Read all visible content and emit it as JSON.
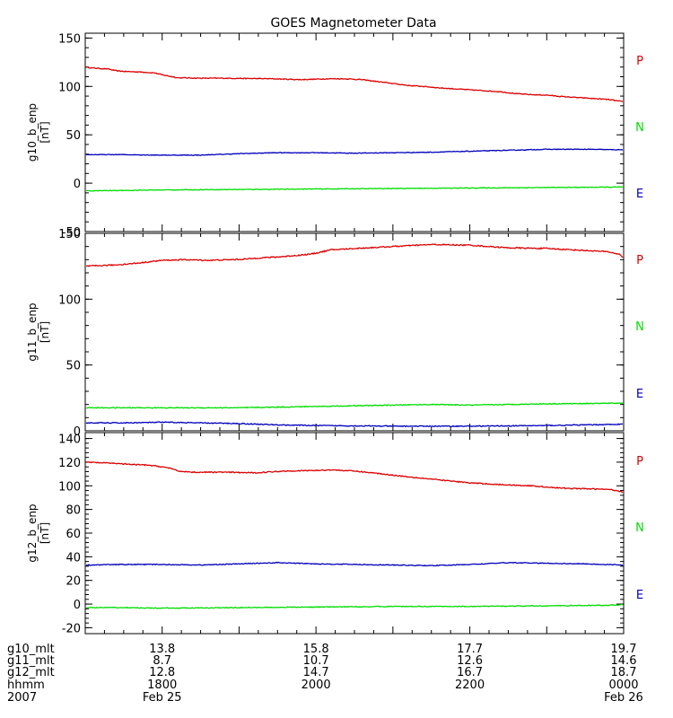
{
  "chart_data": {
    "type": "line",
    "title": "GOES Magnetometer Data",
    "colors": {
      "P": "#dd0000",
      "N": "#00dd00",
      "E": "#0000bb",
      "frame": "#000000"
    },
    "x_time_range": [
      "1700",
      "0000"
    ],
    "panels": [
      {
        "ylabel": "g10_b_enp",
        "unit": "[nT]",
        "ylim": [
          -50,
          155
        ],
        "yticks": [
          "150",
          "100",
          "50",
          "0",
          "-50"
        ],
        "ytick_values": [
          150,
          100,
          50,
          0,
          -50
        ],
        "legend": [
          "P",
          "N",
          "E"
        ],
        "series": [
          {
            "name": "P",
            "x": [
              0,
              0.1,
              0.2,
              0.3,
              0.35,
              0.42,
              0.5,
              0.7,
              0.9,
              1.0,
              1.2,
              1.5,
              1.8,
              2.1,
              2.4,
              2.6,
              2.8,
              3.0,
              3.2,
              3.4,
              3.6,
              3.8,
              4.0,
              4.2,
              4.4,
              4.6,
              4.8,
              5.0,
              5.2,
              5.4,
              5.6,
              5.8,
              6.0,
              6.2,
              6.4,
              6.6,
              6.8,
              7.0
            ],
            "y": [
              120,
              119,
              118.5,
              118,
              117,
              116,
              115.5,
              115,
              114,
              112,
              109,
              108.5,
              108.5,
              108.2,
              108,
              107.5,
              107,
              107.5,
              108,
              107.8,
              107,
              105,
              103,
              101,
              100,
              98.5,
              97.5,
              96.5,
              95.5,
              94.5,
              92.5,
              91.5,
              91,
              89.5,
              88.5,
              87.5,
              86.5,
              84
            ]
          },
          {
            "name": "E",
            "x": [
              0,
              0.5,
              1.0,
              1.5,
              2.0,
              2.5,
              3.0,
              3.5,
              4.0,
              4.5,
              5.0,
              5.5,
              6.0,
              6.5,
              7.0
            ],
            "y": [
              29.5,
              29.5,
              29,
              29,
              30.5,
              31.5,
              31.5,
              31,
              31.5,
              32,
              33,
              34,
              35,
              35,
              34.5
            ]
          },
          {
            "name": "N",
            "x": [
              0,
              0.5,
              1.0,
              2.0,
              3.0,
              4.0,
              5.0,
              6.0,
              7.0
            ],
            "y": [
              -8,
              -7.5,
              -7,
              -6.5,
              -6,
              -5.5,
              -5,
              -4.5,
              -4
            ]
          }
        ]
      },
      {
        "ylabel": "g11_b_enp",
        "unit": "[nT]",
        "ylim": [
          0,
          150
        ],
        "yticks": [
          "150",
          "100",
          "50",
          "0"
        ],
        "ytick_values": [
          150,
          100,
          50,
          0
        ],
        "legend": [
          "P",
          "N",
          "E"
        ],
        "series": [
          {
            "name": "P",
            "x": [
              0,
              0.2,
              0.4,
              0.5,
              0.7,
              1.0,
              1.3,
              1.6,
              1.9,
              2.1,
              2.3,
              2.5,
              2.7,
              2.9,
              3.0,
              3.2,
              3.5,
              4.0,
              4.5,
              5.0,
              5.5,
              6.0,
              6.5,
              6.8,
              6.95,
              7.0
            ],
            "y": [
              125,
              125.5,
              126,
              126.5,
              127.5,
              129.5,
              130,
              129.5,
              130,
              130.5,
              131.5,
              132,
              133,
              134,
              135,
              137.5,
              138.5,
              140,
              141.5,
              141,
              139,
              138.5,
              137,
              136,
              134,
              131
            ]
          },
          {
            "name": "N",
            "x": [
              0,
              1.0,
              2.0,
              3.0,
              4.0,
              4.5,
              5.0,
              6.0,
              7.0
            ],
            "y": [
              17.5,
              17.5,
              17.5,
              18.5,
              19.5,
              20,
              19.5,
              20.5,
              21
            ]
          },
          {
            "name": "E",
            "x": [
              0,
              0.5,
              1.0,
              1.5,
              2.0,
              2.5,
              3.0,
              4.0,
              4.5,
              5.0,
              6.0,
              6.5,
              7.0
            ],
            "y": [
              6,
              6,
              6.5,
              6,
              5.5,
              4.5,
              4,
              3.5,
              3.5,
              3.5,
              4,
              4.5,
              5
            ]
          }
        ]
      },
      {
        "ylabel": "g12_b_enp",
        "unit": "[nT]",
        "ylim": [
          -25,
          145
        ],
        "yticks": [
          "140",
          "120",
          "100",
          "80",
          "60",
          "40",
          "20",
          "0",
          "-20"
        ],
        "ytick_values": [
          140,
          120,
          100,
          80,
          60,
          40,
          20,
          0,
          -20
        ],
        "legend": [
          "P",
          "N",
          "E"
        ],
        "series": [
          {
            "name": "P",
            "x": [
              0,
              0.2,
              0.4,
              0.6,
              0.8,
              0.95,
              1.1,
              1.2,
              1.4,
              1.8,
              2.2,
              2.6,
              3.0,
              3.2,
              3.5,
              3.8,
              4.0,
              4.3,
              4.6,
              5.0,
              5.4,
              5.8,
              6.2,
              6.5,
              6.8,
              6.95,
              7.0
            ],
            "y": [
              120,
              119.5,
              119,
              118,
              117.5,
              116.5,
              115,
              112.5,
              111.5,
              111.5,
              111,
              112.5,
              113,
              113.5,
              112.5,
              110.5,
              109,
              107,
              105,
              102.5,
              101,
              100,
              98,
              97.5,
              97,
              95.5,
              94.5
            ]
          },
          {
            "name": "E",
            "x": [
              0,
              0.5,
              1.0,
              1.5,
              2.0,
              2.5,
              3.0,
              3.5,
              4.0,
              4.5,
              5.0,
              5.5,
              6.0,
              6.5,
              7.0
            ],
            "y": [
              33,
              33.5,
              33.5,
              33,
              34,
              35,
              34,
              33.5,
              33,
              32.5,
              33.5,
              35,
              34.5,
              34,
              33
            ]
          },
          {
            "name": "N",
            "x": [
              0,
              0.5,
              1.0,
              2.0,
              3.0,
              4.0,
              5.0,
              6.0,
              6.8,
              7.0
            ],
            "y": [
              -3,
              -3,
              -3.5,
              -3,
              -2.5,
              -2,
              -2,
              -1.5,
              -1,
              -0.5
            ]
          }
        ]
      }
    ],
    "x_axis": {
      "row_labels": [
        "g10_mlt",
        "g11_mlt",
        "g12_mlt",
        "hhmm",
        "2007"
      ],
      "columns": [
        {
          "x": 1,
          "values": [
            "13.8",
            "8.7",
            "12.8",
            "1800",
            "Feb 25"
          ]
        },
        {
          "x": 3,
          "values": [
            "15.8",
            "10.7",
            "14.7",
            "2000",
            ""
          ]
        },
        {
          "x": 5,
          "values": [
            "17.7",
            "12.6",
            "16.7",
            "2200",
            ""
          ]
        },
        {
          "x": 7,
          "values": [
            "19.7",
            "14.6",
            "18.7",
            "0000",
            "Feb 26"
          ]
        }
      ]
    }
  }
}
